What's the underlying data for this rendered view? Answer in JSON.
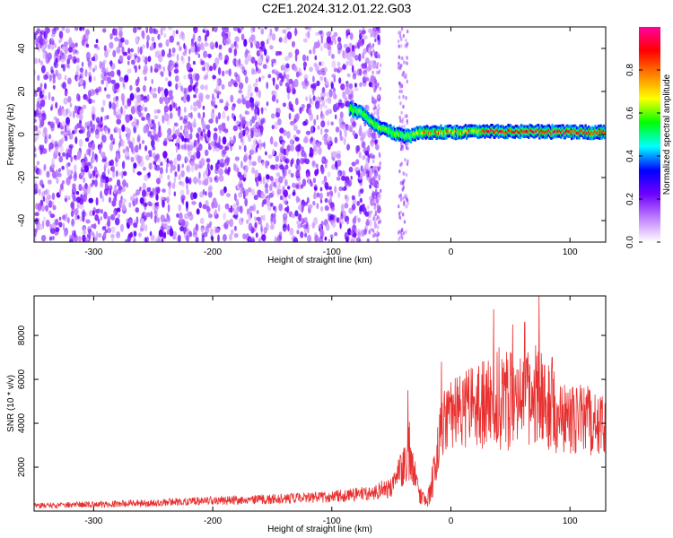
{
  "title": "C2E1.2024.312.01.22.G03",
  "chart_data": [
    {
      "type": "heatmap",
      "xlabel": "Height of straight line (km)",
      "ylabel": "Frequency (Hz)",
      "xlim": [
        -350,
        130
      ],
      "ylim": [
        -50,
        50
      ],
      "xticks": [
        -300,
        -200,
        -100,
        0,
        100
      ],
      "yticks": [
        -40,
        -20,
        0,
        20,
        40
      ],
      "colorbar": {
        "label": "Normalized spectral amplitude",
        "range": [
          0,
          1
        ],
        "ticks": [
          0.0,
          0.2,
          0.4,
          0.6,
          0.8
        ],
        "colors": [
          "#ffffff",
          "#c080ff",
          "#7000ff",
          "#0000ff",
          "#00ffff",
          "#00ff00",
          "#ffff00",
          "#ff8000",
          "#ff0000",
          "#ff00a0"
        ]
      },
      "noise_region": {
        "x_end": -60,
        "amplitude_range": [
          0.05,
          0.25
        ]
      },
      "ridge": [
        {
          "x": -85,
          "y": 12
        },
        {
          "x": -75,
          "y": 10
        },
        {
          "x": -65,
          "y": 5
        },
        {
          "x": -55,
          "y": 2
        },
        {
          "x": -45,
          "y": 0
        },
        {
          "x": -35,
          "y": -1
        },
        {
          "x": -25,
          "y": 1
        },
        {
          "x": 0,
          "y": 1
        },
        {
          "x": 30,
          "y": 1.5
        },
        {
          "x": 130,
          "y": 1
        }
      ]
    },
    {
      "type": "line",
      "xlabel": "Height of straight line (km)",
      "ylabel": "SNR (10 * v/v)",
      "xlim": [
        -350,
        130
      ],
      "ylim": [
        0,
        9800
      ],
      "xticks": [
        -300,
        -200,
        -100,
        0,
        100
      ],
      "yticks": [
        2000,
        4000,
        6000,
        8000
      ],
      "line_color": "#e83030",
      "series": [
        {
          "x": [
            -350,
            -300,
            -250,
            -200,
            -150,
            -100,
            -70,
            -50,
            -40,
            -35,
            -30,
            -25,
            -20,
            -15,
            -10,
            -5,
            0,
            10,
            20,
            30,
            40,
            50,
            60,
            70,
            80,
            90,
            100,
            110,
            120,
            130
          ],
          "base": [
            250,
            300,
            380,
            480,
            550,
            650,
            800,
            1100,
            2000,
            2800,
            1500,
            600,
            350,
            1500,
            3200,
            4300,
            4400,
            4500,
            4700,
            5000,
            5200,
            5000,
            5000,
            5400,
            4800,
            4300,
            4200,
            4200,
            4000,
            3900
          ],
          "spread": [
            120,
            150,
            170,
            200,
            230,
            260,
            350,
            500,
            900,
            1500,
            800,
            400,
            250,
            900,
            1200,
            1500,
            1600,
            1800,
            2100,
            2300,
            2400,
            2300,
            2300,
            2500,
            2100,
            1800,
            1600,
            1600,
            1500,
            1400
          ],
          "peaks": [
            {
              "x": -36,
              "y": 5500
            },
            {
              "x": -8,
              "y": 6800
            },
            {
              "x": 36,
              "y": 9200
            },
            {
              "x": 52,
              "y": 8500
            },
            {
              "x": 62,
              "y": 8600
            },
            {
              "x": 74,
              "y": 9800
            },
            {
              "x": 85,
              "y": 7000
            },
            {
              "x": 115,
              "y": 5700
            }
          ]
        }
      ]
    }
  ]
}
